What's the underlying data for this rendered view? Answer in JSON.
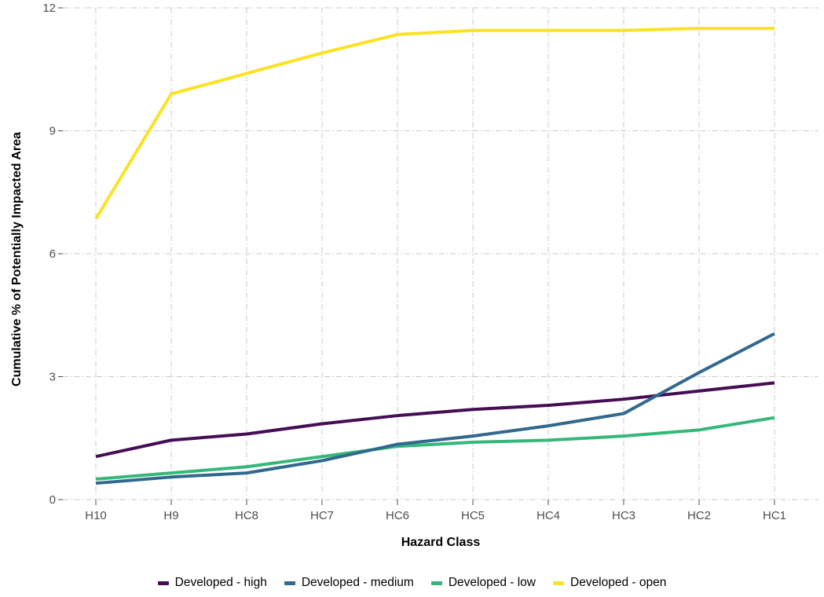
{
  "figure": {
    "background": "#FFFFFF",
    "grid_color": "#C9C9C9",
    "tick_color": "#4D4D4D",
    "tick_label_color": "#4D4D4D",
    "axis_title_color": "#000000"
  },
  "chart_data": {
    "type": "line",
    "title": "",
    "xlabel": "Hazard Class",
    "ylabel": "Cumulative % of Potentially Impacted Area",
    "categories": [
      "H10",
      "H9",
      "HC8",
      "HC7",
      "HC6",
      "HC5",
      "HC4",
      "HC3",
      "HC2",
      "HC1"
    ],
    "yticks": [
      0,
      3,
      6,
      9,
      12
    ],
    "ylim": [
      0,
      12
    ],
    "grid": "dash-dot major gridlines, both axes",
    "legend_position": "bottom",
    "line_width": 4,
    "series": [
      {
        "name": "Developed - high",
        "color": "#440D54",
        "zorder": 1,
        "values": [
          1.05,
          1.45,
          1.6,
          1.85,
          2.05,
          2.2,
          2.3,
          2.45,
          2.65,
          2.85
        ]
      },
      {
        "name": "Developed - medium",
        "color": "#31688E",
        "zorder": 3,
        "values": [
          0.4,
          0.55,
          0.65,
          0.95,
          1.35,
          1.55,
          1.8,
          2.1,
          3.1,
          4.05
        ]
      },
      {
        "name": "Developed - low",
        "color": "#35B779",
        "zorder": 2,
        "values": [
          0.5,
          0.65,
          0.8,
          1.05,
          1.3,
          1.4,
          1.45,
          1.55,
          1.7,
          2.0
        ]
      },
      {
        "name": "Developed - open",
        "color": "#FBE223",
        "zorder": 4,
        "values": [
          6.85,
          9.9,
          10.4,
          10.9,
          11.35,
          11.45,
          11.45,
          11.45,
          11.5,
          11.5
        ]
      }
    ]
  }
}
